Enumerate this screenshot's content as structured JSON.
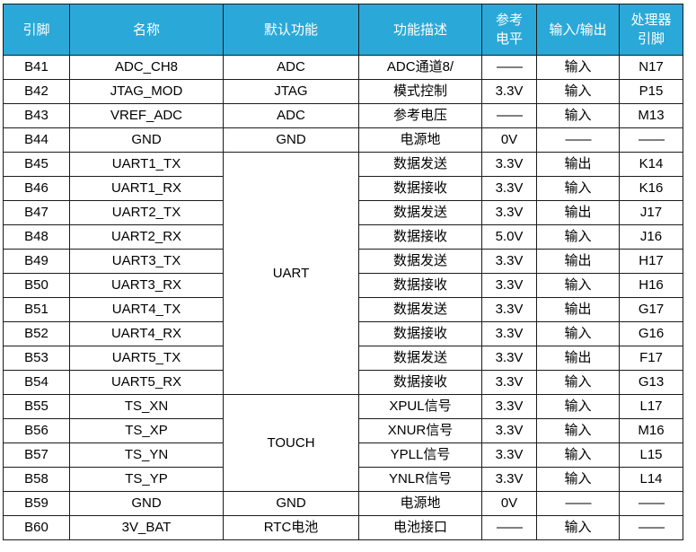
{
  "headers": {
    "pin": "引脚",
    "name": "名称",
    "default_func": "默认功能",
    "func_desc": "功能描述",
    "ref_level_1": "参考",
    "ref_level_2": "电平",
    "io": "输入/输出",
    "cpu_pin_1": "处理器",
    "cpu_pin_2": "引脚"
  },
  "rows": [
    {
      "pin": "B41",
      "name": "ADC_CH8",
      "func": "ADC",
      "desc": "ADC通道8/",
      "level": "——",
      "io": "输入",
      "cpu": "N17"
    },
    {
      "pin": "B42",
      "name": "JTAG_MOD",
      "func": "JTAG",
      "desc": "模式控制",
      "level": "3.3V",
      "io": "输入",
      "cpu": "P15"
    },
    {
      "pin": "B43",
      "name": "VREF_ADC",
      "func": "ADC",
      "desc": "参考电压",
      "level": "——",
      "io": "输入",
      "cpu": "M13"
    },
    {
      "pin": "B44",
      "name": "GND",
      "func": "GND",
      "desc": "电源地",
      "level": "0V",
      "io": "——",
      "cpu": "——"
    },
    {
      "pin": "B45",
      "name": "UART1_TX",
      "desc": "数据发送",
      "level": "3.3V",
      "io": "输出",
      "cpu": "K14"
    },
    {
      "pin": "B46",
      "name": "UART1_RX",
      "desc": "数据接收",
      "level": "3.3V",
      "io": "输入",
      "cpu": "K16"
    },
    {
      "pin": "B47",
      "name": "UART2_TX",
      "desc": "数据发送",
      "level": "3.3V",
      "io": "输出",
      "cpu": "J17"
    },
    {
      "pin": "B48",
      "name": "UART2_RX",
      "desc": "数据接收",
      "level": "5.0V",
      "io": "输入",
      "cpu": "J16"
    },
    {
      "pin": "B49",
      "name": "UART3_TX",
      "desc": "数据发送",
      "level": "3.3V",
      "io": "输出",
      "cpu": "H17"
    },
    {
      "pin": "B50",
      "name": "UART3_RX",
      "desc": "数据接收",
      "level": "3.3V",
      "io": "输入",
      "cpu": "H16"
    },
    {
      "pin": "B51",
      "name": "UART4_TX",
      "desc": "数据发送",
      "level": "3.3V",
      "io": "输出",
      "cpu": "G17"
    },
    {
      "pin": "B52",
      "name": "UART4_RX",
      "desc": "数据接收",
      "level": "3.3V",
      "io": "输入",
      "cpu": "G16"
    },
    {
      "pin": "B53",
      "name": "UART5_TX",
      "desc": "数据发送",
      "level": "3.3V",
      "io": "输出",
      "cpu": "F17"
    },
    {
      "pin": "B54",
      "name": "UART5_RX",
      "desc": "数据接收",
      "level": "3.3V",
      "io": "输入",
      "cpu": "G13"
    },
    {
      "pin": "B55",
      "name": "TS_XN",
      "desc": "XPUL信号",
      "level": "3.3V",
      "io": "输入",
      "cpu": "L17"
    },
    {
      "pin": "B56",
      "name": "TS_XP",
      "desc": "XNUR信号",
      "level": "3.3V",
      "io": "输入",
      "cpu": "M16"
    },
    {
      "pin": "B57",
      "name": "TS_YN",
      "desc": "YPLL信号",
      "level": "3.3V",
      "io": "输入",
      "cpu": "L15"
    },
    {
      "pin": "B58",
      "name": "TS_YP",
      "desc": "YNLR信号",
      "level": "3.3V",
      "io": "输入",
      "cpu": "L14"
    },
    {
      "pin": "B59",
      "name": "GND",
      "func": "GND",
      "desc": "电源地",
      "level": "0V",
      "io": "——",
      "cpu": "——"
    },
    {
      "pin": "B60",
      "name": "3V_BAT",
      "func": "RTC电池",
      "desc": "电池接口",
      "level": "——",
      "io": "输入",
      "cpu": "——"
    }
  ],
  "merged": {
    "uart": "UART",
    "touch": "TOUCH"
  }
}
